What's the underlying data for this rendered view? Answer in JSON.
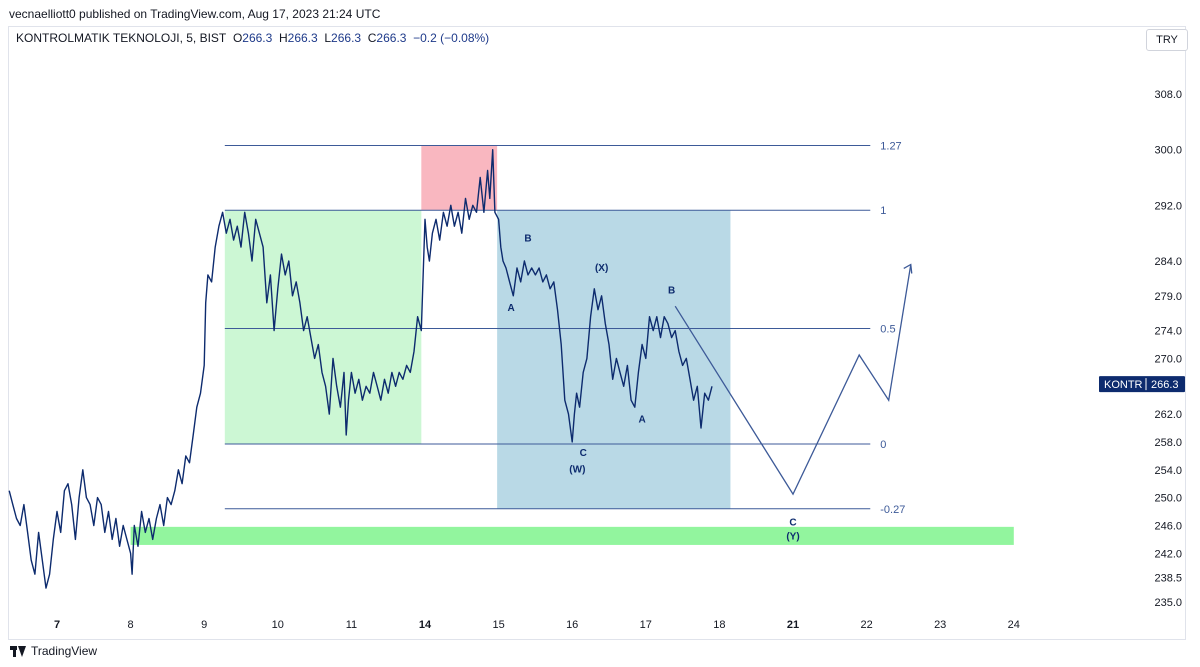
{
  "header": {
    "published": "vecnaelliott0 published on TradingView.com, Aug 17, 2023 21:24 UTC"
  },
  "legend": {
    "symbol": "KONTROLMATIK TEKNOLOJI, 5, BIST",
    "o_label": "O",
    "o": "266.3",
    "h_label": "H",
    "h": "266.3",
    "l_label": "L",
    "l": "266.3",
    "c_label": "C",
    "c": "266.3",
    "change": "−0.2 (−0.08%)"
  },
  "currency_button": "TRY",
  "footer": {
    "brand": "TradingView"
  },
  "colors": {
    "line": "#0d2b6e",
    "fib": "#3d5a98",
    "green_zone": "#ccf7d4",
    "red_zone": "#f9b7c0",
    "blue_zone": "#b9d9e6",
    "support_band": "#92f59e",
    "price_tag": "#0d2b6e"
  },
  "chart_data": {
    "type": "line",
    "symbol": "KONTR",
    "last_price": "266.3",
    "ylim": [
      233.5,
      313
    ],
    "y_ticks": [
      "308.0",
      "300.0",
      "292.0",
      "284.0",
      "279.0",
      "274.0",
      "270.0",
      "266.0",
      "262.0",
      "258.0",
      "254.0",
      "250.0",
      "246.0",
      "242.0",
      "238.5",
      "235.0"
    ],
    "x_ticks": [
      {
        "label": "7",
        "x": 0.0,
        "bold": true
      },
      {
        "label": "8",
        "x": 1.0,
        "bold": false
      },
      {
        "label": "9",
        "x": 2.0,
        "bold": false
      },
      {
        "label": "10",
        "x": 3.0,
        "bold": false
      },
      {
        "label": "11",
        "x": 4.0,
        "bold": false
      },
      {
        "label": "14",
        "x": 5.0,
        "bold": true
      },
      {
        "label": "15",
        "x": 6.0,
        "bold": false
      },
      {
        "label": "16",
        "x": 7.0,
        "bold": false
      },
      {
        "label": "17",
        "x": 8.0,
        "bold": false
      },
      {
        "label": "18",
        "x": 9.0,
        "bold": false
      },
      {
        "label": "21",
        "x": 10.0,
        "bold": true
      },
      {
        "label": "22",
        "x": 11.0,
        "bold": false
      },
      {
        "label": "23",
        "x": 12.0,
        "bold": false
      },
      {
        "label": "24",
        "x": 13.0,
        "bold": false
      }
    ],
    "price_series": [
      [
        -0.65,
        251
      ],
      [
        -0.6,
        249
      ],
      [
        -0.55,
        247
      ],
      [
        -0.5,
        246
      ],
      [
        -0.45,
        249
      ],
      [
        -0.4,
        245
      ],
      [
        -0.35,
        241
      ],
      [
        -0.3,
        239
      ],
      [
        -0.25,
        245
      ],
      [
        -0.2,
        241
      ],
      [
        -0.15,
        237
      ],
      [
        -0.1,
        239
      ],
      [
        -0.05,
        244
      ],
      [
        0.0,
        248
      ],
      [
        0.05,
        245
      ],
      [
        0.1,
        251
      ],
      [
        0.15,
        252
      ],
      [
        0.2,
        249
      ],
      [
        0.25,
        244
      ],
      [
        0.3,
        250
      ],
      [
        0.35,
        254
      ],
      [
        0.4,
        250
      ],
      [
        0.45,
        249
      ],
      [
        0.5,
        246
      ],
      [
        0.55,
        250
      ],
      [
        0.6,
        249
      ],
      [
        0.65,
        245
      ],
      [
        0.7,
        248
      ],
      [
        0.75,
        244
      ],
      [
        0.8,
        247
      ],
      [
        0.85,
        243
      ],
      [
        0.9,
        246
      ],
      [
        0.95,
        244
      ],
      [
        1.0,
        242
      ],
      [
        1.02,
        239
      ],
      [
        1.05,
        246
      ],
      [
        1.1,
        243
      ],
      [
        1.15,
        248
      ],
      [
        1.2,
        245
      ],
      [
        1.25,
        247
      ],
      [
        1.3,
        244
      ],
      [
        1.35,
        247
      ],
      [
        1.4,
        249
      ],
      [
        1.45,
        246
      ],
      [
        1.5,
        250
      ],
      [
        1.55,
        249
      ],
      [
        1.6,
        251
      ],
      [
        1.65,
        254
      ],
      [
        1.7,
        252
      ],
      [
        1.75,
        256
      ],
      [
        1.8,
        255
      ],
      [
        1.85,
        259
      ],
      [
        1.9,
        263
      ],
      [
        1.95,
        265
      ],
      [
        2.0,
        269
      ],
      [
        2.02,
        278
      ],
      [
        2.05,
        282
      ],
      [
        2.1,
        281
      ],
      [
        2.15,
        286
      ],
      [
        2.2,
        289
      ],
      [
        2.25,
        291
      ],
      [
        2.3,
        288
      ],
      [
        2.35,
        290
      ],
      [
        2.4,
        287
      ],
      [
        2.45,
        289
      ],
      [
        2.5,
        286
      ],
      [
        2.55,
        291
      ],
      [
        2.6,
        288
      ],
      [
        2.65,
        284
      ],
      [
        2.7,
        290
      ],
      [
        2.75,
        288
      ],
      [
        2.8,
        286
      ],
      [
        2.85,
        278
      ],
      [
        2.9,
        282
      ],
      [
        2.95,
        274
      ],
      [
        3.0,
        280
      ],
      [
        3.05,
        285
      ],
      [
        3.1,
        282
      ],
      [
        3.15,
        284
      ],
      [
        3.2,
        279
      ],
      [
        3.25,
        281
      ],
      [
        3.3,
        278
      ],
      [
        3.35,
        274
      ],
      [
        3.4,
        276
      ],
      [
        3.45,
        273
      ],
      [
        3.5,
        270
      ],
      [
        3.55,
        272
      ],
      [
        3.6,
        268
      ],
      [
        3.65,
        266
      ],
      [
        3.7,
        262
      ],
      [
        3.75,
        270
      ],
      [
        3.8,
        266
      ],
      [
        3.85,
        263
      ],
      [
        3.9,
        268
      ],
      [
        3.93,
        259
      ],
      [
        3.96,
        264
      ],
      [
        4.0,
        268
      ],
      [
        4.05,
        265
      ],
      [
        4.1,
        267
      ],
      [
        4.15,
        264
      ],
      [
        4.2,
        266
      ],
      [
        4.25,
        265
      ],
      [
        4.3,
        268
      ],
      [
        4.35,
        266
      ],
      [
        4.4,
        264
      ],
      [
        4.45,
        267
      ],
      [
        4.5,
        265
      ],
      [
        4.55,
        268
      ],
      [
        4.6,
        266
      ],
      [
        4.65,
        268
      ],
      [
        4.7,
        267
      ],
      [
        4.75,
        269
      ],
      [
        4.8,
        268
      ],
      [
        4.85,
        271
      ],
      [
        4.9,
        276
      ],
      [
        4.95,
        274
      ],
      [
        5.0,
        290
      ],
      [
        5.03,
        286
      ],
      [
        5.06,
        284
      ],
      [
        5.1,
        288
      ],
      [
        5.15,
        290
      ],
      [
        5.2,
        287
      ],
      [
        5.25,
        291
      ],
      [
        5.3,
        289
      ],
      [
        5.35,
        292
      ],
      [
        5.4,
        289
      ],
      [
        5.45,
        291
      ],
      [
        5.5,
        288
      ],
      [
        5.55,
        293
      ],
      [
        5.6,
        290
      ],
      [
        5.65,
        292
      ],
      [
        5.7,
        291
      ],
      [
        5.75,
        296
      ],
      [
        5.8,
        291
      ],
      [
        5.85,
        297
      ],
      [
        5.88,
        293
      ],
      [
        5.92,
        300
      ],
      [
        5.95,
        291
      ],
      [
        6.0,
        290
      ],
      [
        6.03,
        286
      ],
      [
        6.06,
        284
      ],
      [
        6.1,
        283
      ],
      [
        6.15,
        281
      ],
      [
        6.2,
        279
      ],
      [
        6.25,
        283
      ],
      [
        6.3,
        281
      ],
      [
        6.35,
        284
      ],
      [
        6.4,
        282
      ],
      [
        6.45,
        283
      ],
      [
        6.5,
        282
      ],
      [
        6.55,
        283
      ],
      [
        6.6,
        281
      ],
      [
        6.65,
        282
      ],
      [
        6.7,
        280
      ],
      [
        6.75,
        281
      ],
      [
        6.8,
        277
      ],
      [
        6.85,
        272
      ],
      [
        6.9,
        264
      ],
      [
        6.95,
        262
      ],
      [
        7.0,
        258
      ],
      [
        7.03,
        262
      ],
      [
        7.06,
        265
      ],
      [
        7.1,
        263
      ],
      [
        7.15,
        268
      ],
      [
        7.2,
        270
      ],
      [
        7.25,
        276
      ],
      [
        7.3,
        280
      ],
      [
        7.35,
        277
      ],
      [
        7.4,
        279
      ],
      [
        7.45,
        275
      ],
      [
        7.5,
        272
      ],
      [
        7.55,
        267
      ],
      [
        7.6,
        270
      ],
      [
        7.65,
        268
      ],
      [
        7.7,
        266
      ],
      [
        7.75,
        269
      ],
      [
        7.8,
        264
      ],
      [
        7.85,
        263
      ],
      [
        7.9,
        268
      ],
      [
        7.95,
        272
      ],
      [
        8.0,
        270
      ],
      [
        8.05,
        276
      ],
      [
        8.1,
        274
      ],
      [
        8.15,
        276
      ],
      [
        8.2,
        273
      ],
      [
        8.25,
        276
      ],
      [
        8.3,
        275
      ],
      [
        8.35,
        273
      ],
      [
        8.4,
        274
      ],
      [
        8.45,
        271
      ],
      [
        8.5,
        269
      ],
      [
        8.55,
        270
      ],
      [
        8.6,
        267
      ],
      [
        8.65,
        264
      ],
      [
        8.7,
        266
      ],
      [
        8.75,
        260
      ],
      [
        8.8,
        265
      ],
      [
        8.85,
        264
      ],
      [
        8.9,
        266
      ]
    ],
    "projection": [
      [
        8.4,
        277.5
      ],
      [
        10.0,
        250.5
      ],
      [
        10.9,
        270.5
      ],
      [
        11.3,
        264
      ],
      [
        11.6,
        283.5
      ]
    ],
    "fib_levels": [
      {
        "label": "1.27",
        "price": 300.6
      },
      {
        "label": "1",
        "price": 291.3
      },
      {
        "label": "0.5",
        "price": 274.3
      },
      {
        "label": "0",
        "price": 257.7
      },
      {
        "label": "-0.27",
        "price": 248.4
      }
    ],
    "wave_labels": [
      {
        "text": "B",
        "x": 6.4,
        "price": 286.8
      },
      {
        "text": "A",
        "x": 6.17,
        "price": 276.8
      },
      {
        "text": "(X)",
        "x": 7.4,
        "price": 282.6
      },
      {
        "text": "B",
        "x": 8.35,
        "price": 279.3
      },
      {
        "text": "A",
        "x": 7.95,
        "price": 260.8
      },
      {
        "text": "C",
        "x": 7.15,
        "price": 256.0
      },
      {
        "text": "(W)",
        "x": 7.07,
        "price": 253.6
      },
      {
        "text": "C",
        "x": 10.0,
        "price": 246.0
      },
      {
        "text": "(Y)",
        "x": 10.0,
        "price": 244.0
      }
    ],
    "zones": [
      {
        "name": "green",
        "x0": 2.28,
        "x1": 4.95,
        "y0": 257.7,
        "y1": 291.3
      },
      {
        "name": "red",
        "x0": 4.95,
        "x1": 5.98,
        "y0": 291.3,
        "y1": 300.6
      },
      {
        "name": "blue",
        "x0": 5.98,
        "x1": 9.15,
        "y0": 248.4,
        "y1": 291.3
      },
      {
        "name": "support",
        "x0": 1.0,
        "x1": 13.0,
        "y0": 243.2,
        "y1": 245.8
      }
    ]
  }
}
